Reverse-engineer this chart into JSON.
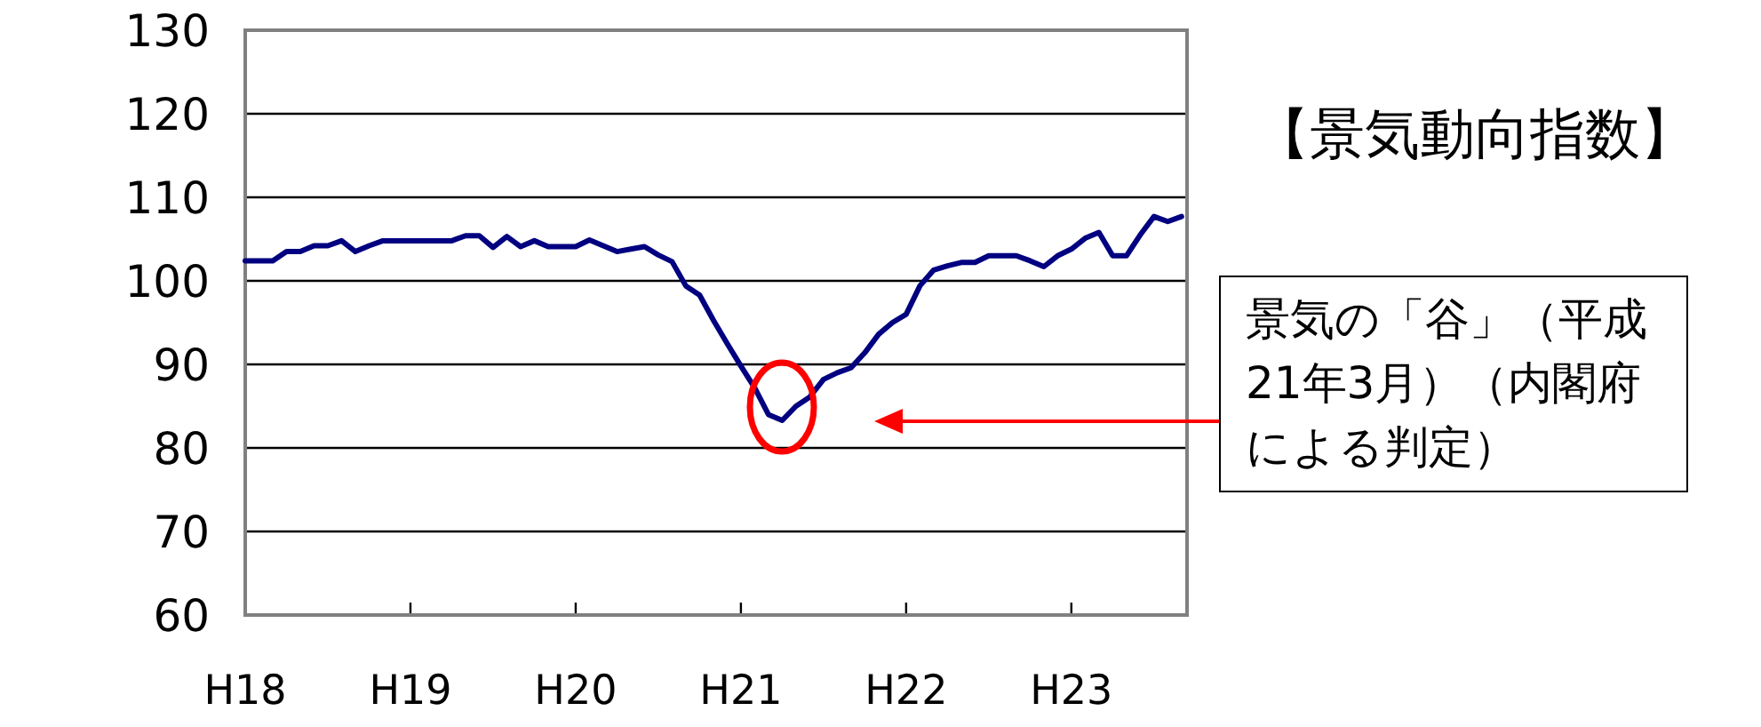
{
  "chart_data": {
    "type": "line",
    "title": "【景気動向指数】",
    "categories": [
      "H18",
      null,
      null,
      null,
      null,
      null,
      null,
      null,
      null,
      null,
      null,
      null,
      "H19",
      null,
      null,
      null,
      null,
      null,
      null,
      null,
      null,
      null,
      null,
      null,
      "H20",
      null,
      null,
      null,
      null,
      null,
      null,
      null,
      null,
      null,
      null,
      null,
      "H21",
      null,
      null,
      null,
      null,
      null,
      null,
      null,
      null,
      null,
      null,
      null,
      "H22",
      null,
      null,
      null,
      null,
      null,
      null,
      null,
      null,
      null,
      null,
      null,
      "H23",
      null,
      null,
      null,
      null,
      null,
      null,
      null,
      null
    ],
    "series": [
      {
        "color": "#000080",
        "values": [
          102.4,
          102.4,
          102.4,
          103.5,
          103.5,
          104.2,
          104.2,
          104.8,
          103.5,
          104.2,
          104.8,
          104.8,
          104.8,
          104.8,
          104.8,
          104.8,
          105.4,
          105.4,
          104.0,
          105.3,
          104.1,
          104.8,
          104.1,
          104.1,
          104.1,
          104.9,
          104.2,
          103.5,
          103.8,
          104.1,
          103.1,
          102.3,
          99.4,
          98.3,
          95.3,
          92.5,
          89.8,
          87.2,
          84.0,
          83.3,
          85.0,
          86.1,
          88.2,
          89.0,
          89.6,
          91.4,
          93.6,
          95.0,
          96.0,
          99.4,
          101.3,
          101.8,
          102.2,
          102.2,
          103.0,
          103.0,
          103.0,
          102.4,
          101.7,
          103.0,
          103.8,
          105.1,
          105.8,
          103.0,
          103.0,
          105.5,
          107.7,
          107.1,
          107.7
        ]
      }
    ],
    "ylim": [
      60,
      130
    ],
    "yticks": [
      60,
      70,
      80,
      90,
      100,
      110,
      120,
      130
    ],
    "grid": "y",
    "marker": "none",
    "line_style": "solid",
    "annotations": [
      "景気の「谷」（平成21年3月）（内閣府による判定）"
    ]
  }
}
